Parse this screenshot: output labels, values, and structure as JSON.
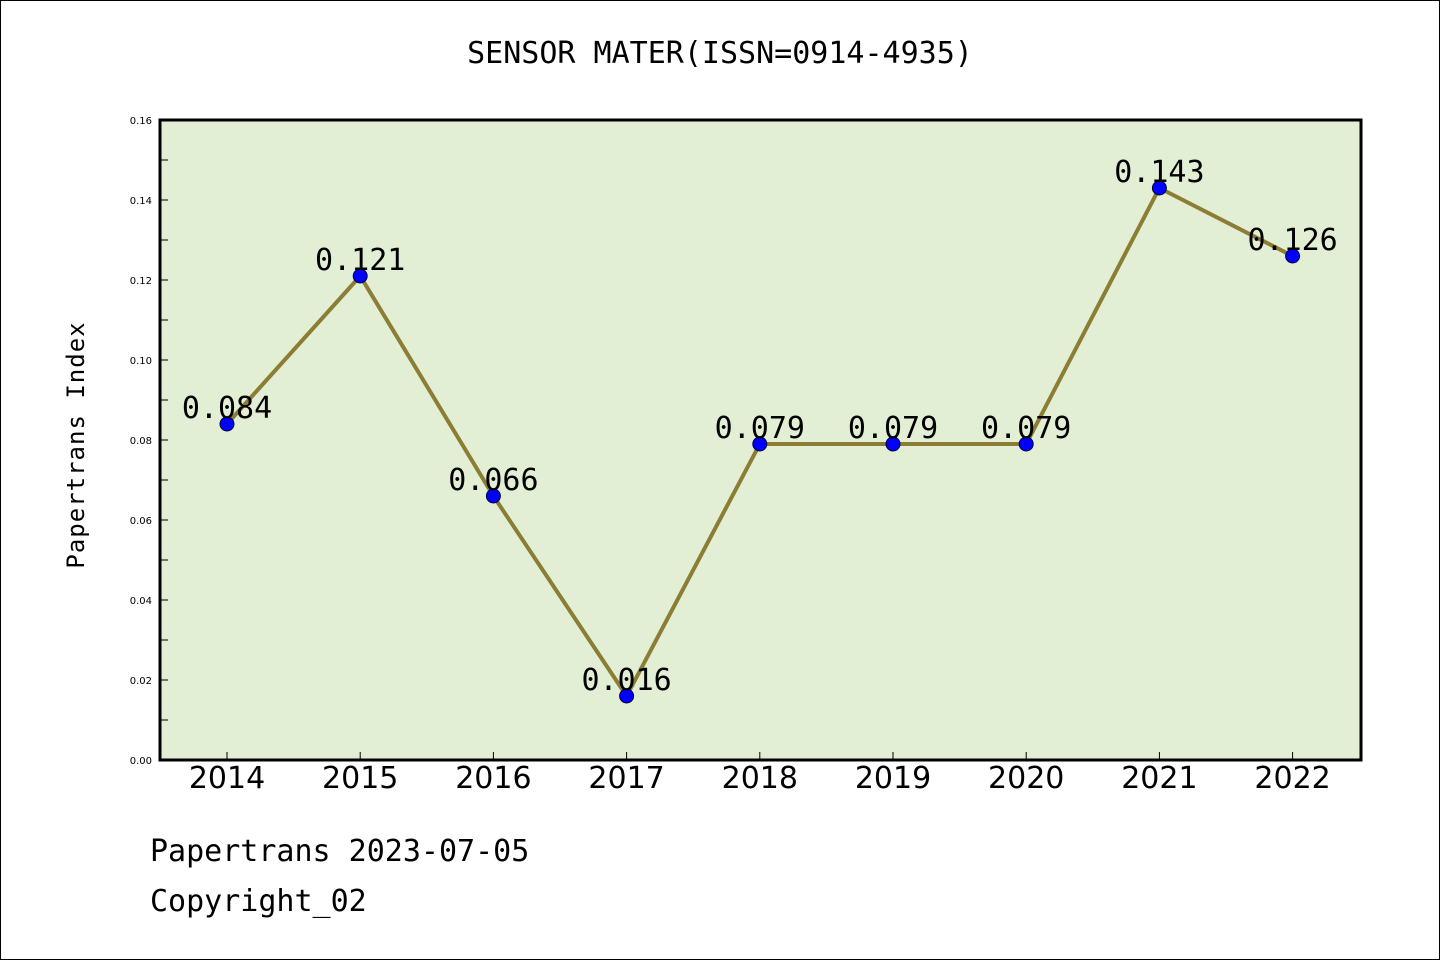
{
  "chart_data": {
    "type": "line",
    "title": "SENSOR MATER(ISSN=0914-4935)",
    "xlabel": "",
    "ylabel": "Papertrans Index",
    "categories": [
      "2014",
      "2015",
      "2016",
      "2017",
      "2018",
      "2019",
      "2020",
      "2021",
      "2022"
    ],
    "series": [
      {
        "values": [
          0.084,
          0.121,
          0.066,
          0.016,
          0.079,
          0.079,
          0.079,
          0.143,
          0.126
        ]
      }
    ],
    "data_labels": [
      "0.084",
      "0.121",
      "0.066",
      "0.016",
      "0.079",
      "0.079",
      "0.079",
      "0.143",
      "0.126"
    ],
    "ylim": [
      0,
      0.16
    ],
    "yticks": [
      "0.00",
      "0.02",
      "0.04",
      "0.06",
      "0.08",
      "0.10",
      "0.12",
      "0.14",
      "0.16"
    ],
    "grid": false,
    "legend": "none",
    "colors": {
      "plot_background": "#e2efd5",
      "line": "#8b7d34",
      "marker": "#0000ff"
    }
  },
  "footer": {
    "date_text": "Papertrans 2023-07-05",
    "copyright_text": "Copyright_02"
  }
}
